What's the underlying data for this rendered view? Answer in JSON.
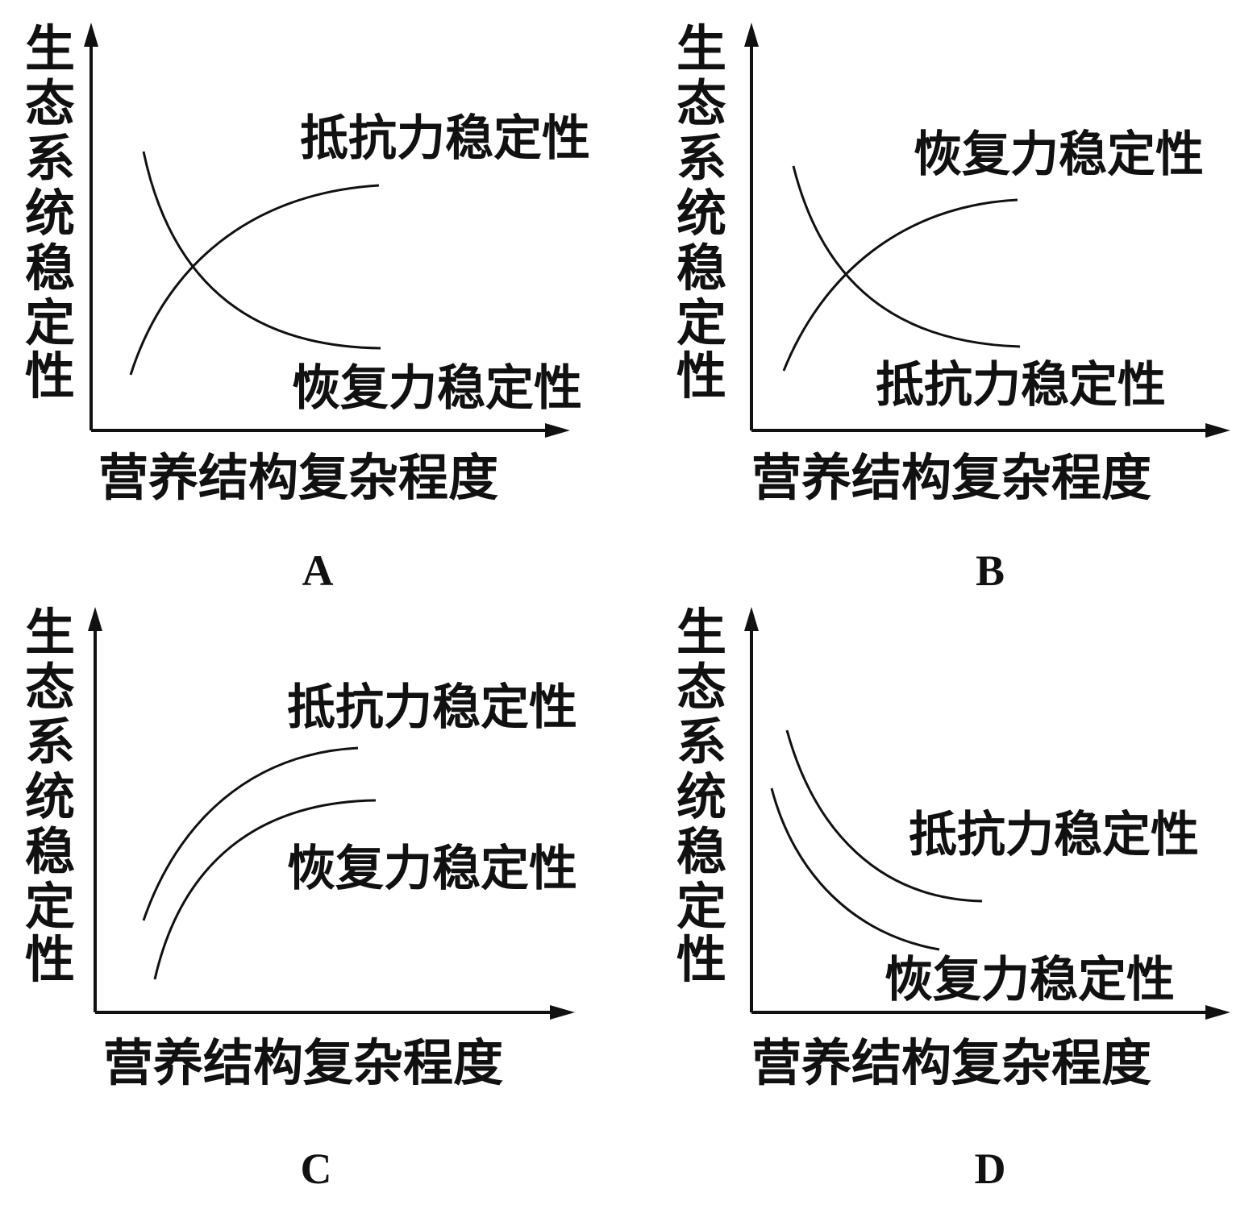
{
  "axis_labels": {
    "y": "生态系统稳定性",
    "x": "营养结构复杂程度"
  },
  "panels": [
    {
      "letter": "A",
      "curve_labels": {
        "upper": "抵抗力稳定性",
        "lower": "恢复力稳定性"
      },
      "rising_curve": "抵抗力稳定性",
      "falling_curve": "恢复力稳定性"
    },
    {
      "letter": "B",
      "curve_labels": {
        "upper": "恢复力稳定性",
        "lower": "抵抗力稳定性"
      },
      "rising_curve": "恢复力稳定性",
      "falling_curve": "抵抗力稳定性"
    },
    {
      "letter": "C",
      "curve_labels": {
        "upper": "抵抗力稳定性",
        "lower": "恢复力稳定性"
      },
      "rising_curve_upper": "抵抗力稳定性",
      "rising_curve_lower": "恢复力稳定性"
    },
    {
      "letter": "D",
      "curve_labels": {
        "upper": "抵抗力稳定性",
        "lower": "恢复力稳定性"
      },
      "falling_curve_upper": "抵抗力稳定性",
      "falling_curve_lower": "恢复力稳定性"
    }
  ]
}
